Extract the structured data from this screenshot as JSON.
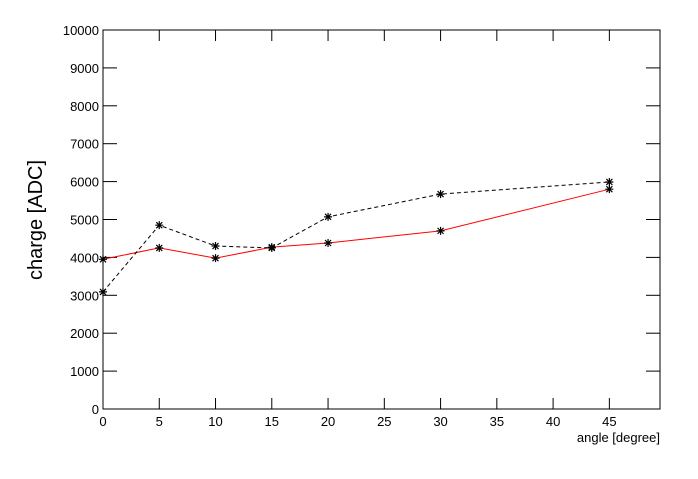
{
  "chart_data": {
    "type": "line",
    "x_label": "angle [degree]",
    "y_label": "charge [ADC]",
    "x": [
      0,
      5,
      10,
      15,
      20,
      30,
      45
    ],
    "series": [
      {
        "color": "#ff0000",
        "dash": false,
        "marker_color": "#000000",
        "values": [
          3950,
          4250,
          3980,
          4270,
          4380,
          4700,
          5800
        ]
      },
      {
        "color": "#000000",
        "dash": true,
        "marker_color": "#000000",
        "values": [
          3090,
          4850,
          4300,
          4250,
          5070,
          5670,
          5990
        ]
      }
    ],
    "xlim": [
      0,
      49.5
    ],
    "xticks": [
      0,
      5,
      10,
      15,
      20,
      25,
      30,
      35,
      40,
      45
    ],
    "ylim": [
      0,
      10000
    ],
    "yticks": [
      0,
      1000,
      2000,
      3000,
      4000,
      5000,
      6000,
      7000,
      8000,
      9000,
      10000
    ],
    "grid": false
  }
}
